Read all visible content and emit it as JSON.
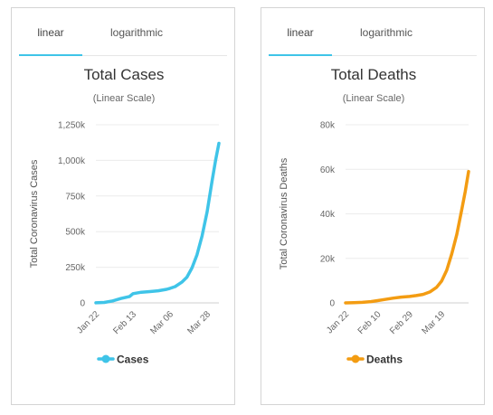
{
  "panels": [
    {
      "tabs": [
        {
          "label": "linear",
          "active": true
        },
        {
          "label": "logarithmic",
          "active": false
        }
      ]
    },
    {
      "tabs": [
        {
          "label": "linear",
          "active": true
        },
        {
          "label": "logarithmic",
          "active": false
        }
      ]
    }
  ],
  "chart_data": [
    {
      "type": "line",
      "title": "Total Cases",
      "subtitle": "(Linear Scale)",
      "xlabel": "",
      "ylabel": "Total Coronavirus Cases",
      "ylim": [
        0,
        1250000
      ],
      "yticks": [
        0,
        250000,
        500000,
        750000,
        1000000,
        1250000
      ],
      "ytick_labels": [
        "0",
        "250k",
        "500k",
        "750k",
        "1,000k",
        "1,250k"
      ],
      "xticks": [
        "Jan 22",
        "Feb 13",
        "Mar 06",
        "Mar 28"
      ],
      "grid": true,
      "legend_position": "bottom",
      "color": "#3fc4e8",
      "series": [
        {
          "name": "Cases",
          "x": [
            "Jan 22",
            "Jan 27",
            "Feb 01",
            "Feb 06",
            "Feb 11",
            "Feb 13",
            "Feb 18",
            "Feb 23",
            "Feb 28",
            "Mar 04",
            "Mar 06",
            "Mar 09",
            "Mar 13",
            "Mar 16",
            "Mar 19",
            "Mar 22",
            "Mar 25",
            "Mar 28",
            "Mar 31",
            "Apr 02",
            "Apr 04"
          ],
          "values": [
            600,
            3000,
            14000,
            31000,
            45000,
            65000,
            75000,
            79000,
            85000,
            95000,
            102000,
            114000,
            145000,
            180000,
            245000,
            338000,
            470000,
            640000,
            858000,
            1000000,
            1120000
          ]
        }
      ]
    },
    {
      "type": "line",
      "title": "Total Deaths",
      "subtitle": "(Linear Scale)",
      "xlabel": "",
      "ylabel": "Total Coronavirus Deaths",
      "ylim": [
        0,
        80000
      ],
      "yticks": [
        0,
        20000,
        40000,
        60000,
        80000
      ],
      "ytick_labels": [
        "0",
        "20k",
        "40k",
        "60k",
        "80k"
      ],
      "xticks": [
        "Jan 22",
        "Feb 10",
        "Feb 29",
        "Mar 19"
      ],
      "grid": true,
      "legend_position": "bottom",
      "color": "#f39c12",
      "series": [
        {
          "name": "Deaths",
          "x": [
            "Jan 22",
            "Jan 27",
            "Feb 01",
            "Feb 06",
            "Feb 10",
            "Feb 14",
            "Feb 19",
            "Feb 24",
            "Feb 29",
            "Mar 04",
            "Mar 08",
            "Mar 12",
            "Mar 16",
            "Mar 19",
            "Mar 22",
            "Mar 25",
            "Mar 28",
            "Mar 31",
            "Apr 02",
            "Apr 04"
          ],
          "values": [
            17,
            80,
            260,
            560,
            1000,
            1500,
            2100,
            2600,
            2900,
            3300,
            3800,
            4900,
            7000,
            9800,
            14600,
            22000,
            30800,
            42000,
            50000,
            59000
          ]
        }
      ]
    }
  ]
}
